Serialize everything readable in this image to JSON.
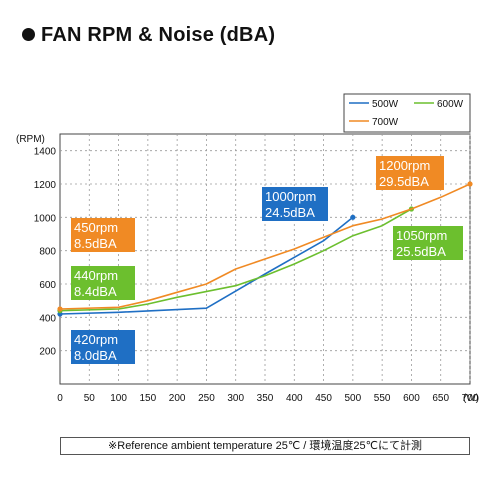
{
  "page": {
    "title": "FAN RPM & Noise (dBA)",
    "footnote": "※Reference ambient temperature 25℃ / 環境温度25℃にて計測"
  },
  "chart_data": {
    "type": "line",
    "title": "FAN RPM & Noise (dBA)",
    "xlabel": "(W)",
    "ylabel": "(RPM)",
    "xlim": [
      0,
      700
    ],
    "ylim": [
      0,
      1500
    ],
    "xticks": [
      0,
      50,
      100,
      150,
      200,
      250,
      300,
      350,
      400,
      450,
      500,
      550,
      600,
      650,
      700
    ],
    "yticks": [
      200,
      400,
      600,
      800,
      1000,
      1200,
      1400
    ],
    "grid": true,
    "legend_position": "top-right",
    "series": [
      {
        "name": "500W",
        "color": "#1f6fc4",
        "x": [
          0,
          100,
          250,
          350,
          450,
          500
        ],
        "y": [
          420,
          430,
          455,
          660,
          860,
          1000
        ]
      },
      {
        "name": "600W",
        "color": "#6cbf2e",
        "x": [
          0,
          100,
          150,
          200,
          300,
          350,
          400,
          450,
          500,
          550,
          600
        ],
        "y": [
          440,
          450,
          480,
          520,
          590,
          650,
          720,
          800,
          890,
          950,
          1050
        ]
      },
      {
        "name": "700W",
        "color": "#f08a24",
        "x": [
          0,
          100,
          150,
          200,
          250,
          300,
          350,
          400,
          450,
          500,
          550,
          600,
          650,
          700
        ],
        "y": [
          450,
          460,
          500,
          550,
          600,
          690,
          750,
          810,
          880,
          950,
          990,
          1050,
          1120,
          1200
        ]
      }
    ],
    "annotations": [
      {
        "name": "700w-min-label",
        "lines": [
          "450rpm",
          "8.5dBA"
        ],
        "color": "#f08a24"
      },
      {
        "name": "600w-min-label",
        "lines": [
          "440rpm",
          "8.4dBA"
        ],
        "color": "#6cbf2e"
      },
      {
        "name": "500w-min-label",
        "lines": [
          "420rpm",
          "8.0dBA"
        ],
        "color": "#1f6fc4"
      },
      {
        "name": "500w-max-label",
        "lines": [
          "1000rpm",
          "24.5dBA"
        ],
        "color": "#1f6fc4"
      },
      {
        "name": "700w-max-label",
        "lines": [
          "1200rpm",
          "29.5dBA"
        ],
        "color": "#f08a24"
      },
      {
        "name": "600w-max-label",
        "lines": [
          "1050rpm",
          "25.5dBA"
        ],
        "color": "#6cbf2e"
      }
    ]
  }
}
